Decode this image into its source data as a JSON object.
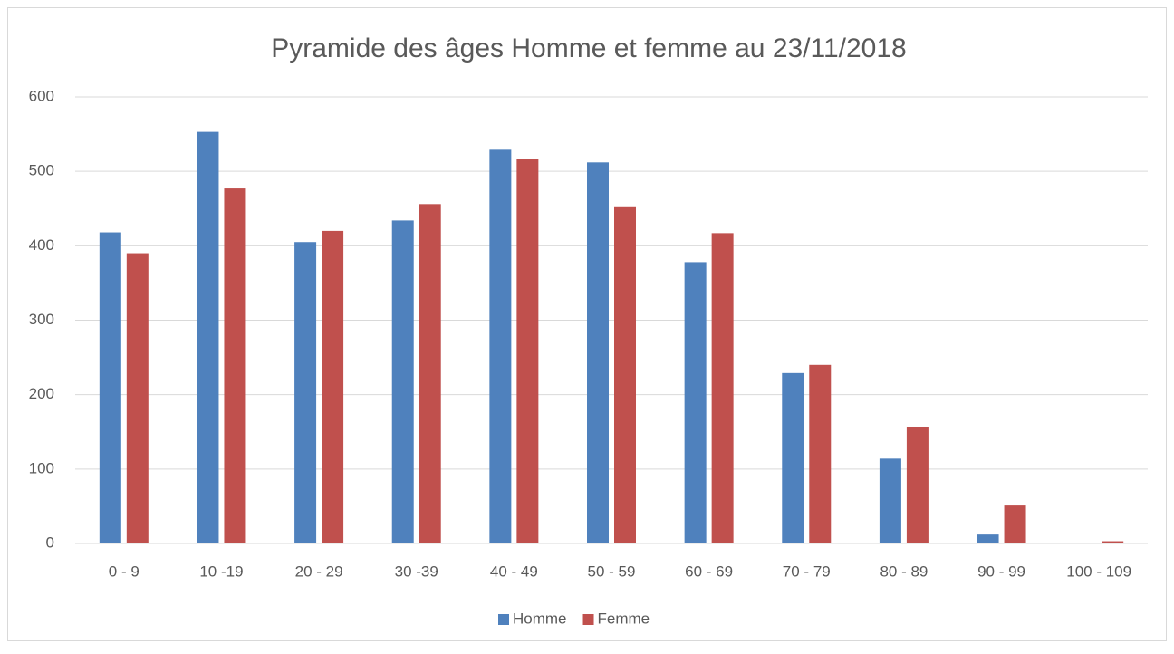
{
  "chart_data": {
    "type": "bar",
    "title": "Pyramide des âges Homme et femme au 23/11/2018",
    "categories": [
      "0 - 9",
      "10 -19",
      "20 - 29",
      "30 -39",
      "40 - 49",
      "50 - 59",
      "60 - 69",
      "70 - 79",
      "80 - 89",
      "90 - 99",
      "100 - 109"
    ],
    "series": [
      {
        "name": "Homme",
        "color": "#4f81bd",
        "values": [
          418,
          553,
          405,
          434,
          529,
          512,
          378,
          229,
          114,
          12,
          0
        ]
      },
      {
        "name": "Femme",
        "color": "#c0504d",
        "values": [
          390,
          477,
          420,
          456,
          517,
          453,
          417,
          240,
          157,
          51,
          3
        ]
      }
    ],
    "ylim": [
      0,
      600
    ],
    "yticks": [
      0,
      100,
      200,
      300,
      400,
      500,
      600
    ],
    "grid": true,
    "legend": "bottom"
  }
}
